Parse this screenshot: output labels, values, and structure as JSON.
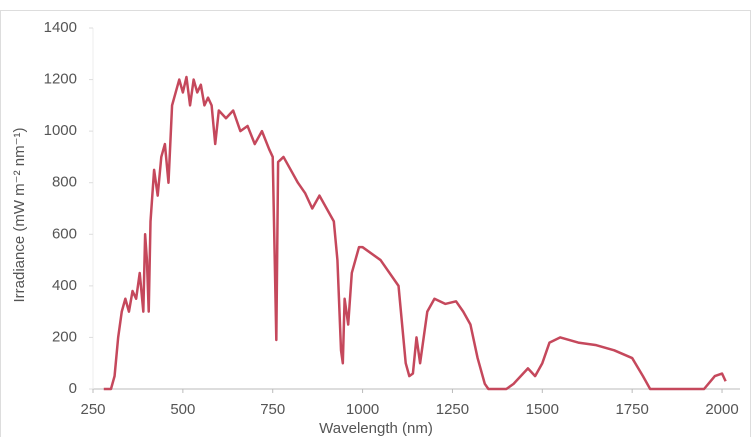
{
  "chart_data": {
    "type": "line",
    "x_label": "Wavelength (nm)",
    "y_label": "Irradiance (mW m⁻² nm⁻¹)",
    "x": [
      280,
      300,
      310,
      320,
      330,
      340,
      350,
      360,
      370,
      380,
      390,
      395,
      400,
      405,
      410,
      420,
      430,
      440,
      450,
      460,
      470,
      480,
      490,
      500,
      510,
      520,
      530,
      540,
      550,
      560,
      570,
      580,
      590,
      600,
      620,
      640,
      660,
      680,
      700,
      720,
      740,
      750,
      760,
      765,
      780,
      800,
      820,
      840,
      860,
      880,
      900,
      920,
      930,
      940,
      945,
      950,
      960,
      970,
      990,
      1000,
      1050,
      1100,
      1120,
      1130,
      1140,
      1150,
      1160,
      1180,
      1200,
      1230,
      1260,
      1280,
      1300,
      1320,
      1340,
      1350,
      1400,
      1420,
      1440,
      1460,
      1480,
      1500,
      1520,
      1550,
      1600,
      1650,
      1700,
      1750,
      1780,
      1800,
      1950,
      1980,
      2000,
      2010
    ],
    "series": [
      {
        "name": "Irradiance",
        "color": "#c5485c",
        "values": [
          0,
          0,
          50,
          200,
          300,
          350,
          300,
          380,
          350,
          450,
          300,
          600,
          500,
          300,
          650,
          850,
          750,
          900,
          950,
          800,
          1100,
          1150,
          1200,
          1150,
          1210,
          1100,
          1200,
          1150,
          1180,
          1100,
          1130,
          1100,
          950,
          1080,
          1050,
          1080,
          1000,
          1020,
          950,
          1000,
          930,
          900,
          190,
          880,
          900,
          850,
          800,
          760,
          700,
          750,
          700,
          650,
          500,
          150,
          100,
          350,
          250,
          450,
          550,
          550,
          500,
          400,
          100,
          50,
          60,
          200,
          100,
          300,
          350,
          330,
          340,
          300,
          250,
          120,
          20,
          0,
          0,
          20,
          50,
          80,
          50,
          100,
          180,
          200,
          180,
          170,
          150,
          120,
          50,
          0,
          0,
          50,
          60,
          30
        ]
      }
    ],
    "xlim": [
      250,
      2050
    ],
    "xticks": [
      250,
      500,
      750,
      1000,
      1250,
      1500,
      1750,
      2000
    ],
    "ylim": [
      0,
      1400
    ],
    "yticks": [
      0,
      200,
      400,
      600,
      800,
      1000,
      1200,
      1400
    ]
  }
}
